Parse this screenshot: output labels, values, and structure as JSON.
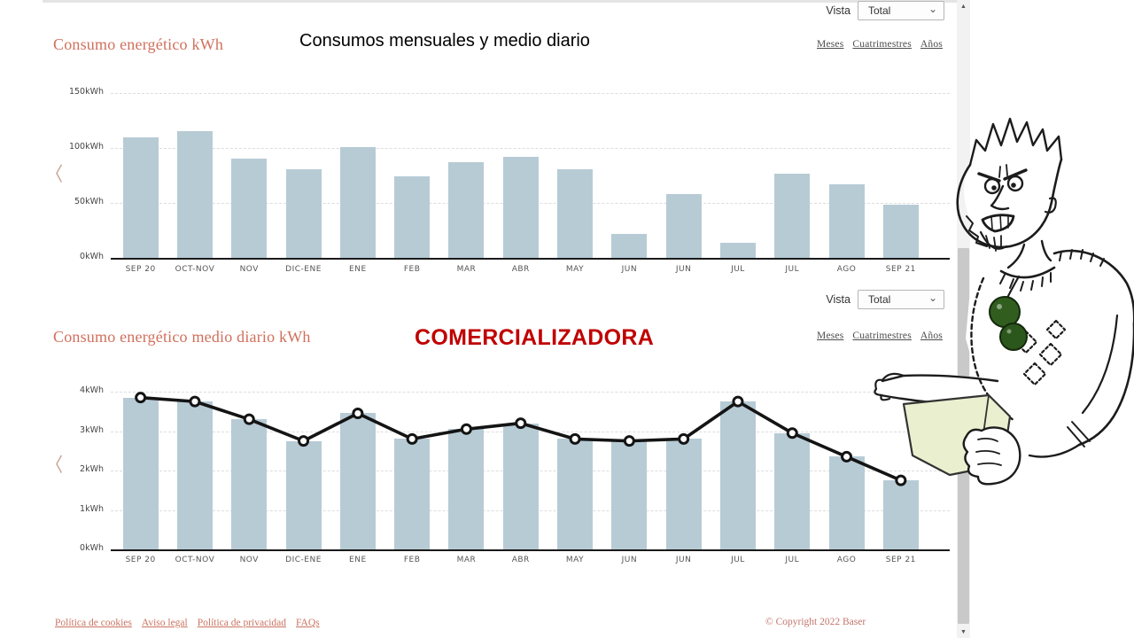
{
  "controls": {
    "vista_label": "Vista",
    "vista_value": "Total",
    "period_links": [
      "Meses",
      "Cuatrimestres",
      "Años"
    ]
  },
  "annotations": {
    "caption_top": "Consumos mensuales y medio diario",
    "caption_middle": "COMERCIALIZADORA"
  },
  "chart_data": [
    {
      "type": "bar",
      "title": "Consumo energético kWh",
      "categories": [
        "SEP 20",
        "OCT-NOV",
        "NOV",
        "DIC-ENE",
        "ENE",
        "FEB",
        "MAR",
        "ABR",
        "MAY",
        "JUN",
        "JUN",
        "JUL",
        "JUL",
        "AGO",
        "SEP 21"
      ],
      "values": [
        110,
        115,
        90,
        81,
        101,
        74,
        87,
        92,
        81,
        22,
        58,
        14,
        77,
        67,
        48
      ],
      "ylim": [
        0,
        150
      ],
      "ytick_values": [
        0,
        50,
        100,
        150
      ],
      "ytick_labels": [
        "0kWh",
        "50kWh",
        "100kWh",
        "150kWh"
      ],
      "unit": "kWh",
      "bar_color": "#b7cbd5",
      "grid": true,
      "legend": false
    },
    {
      "type": "bar+line",
      "title": "Consumo energético medio diario kWh",
      "categories": [
        "SEP 20",
        "OCT-NOV",
        "NOV",
        "DIC-ENE",
        "ENE",
        "FEB",
        "MAR",
        "ABR",
        "MAY",
        "JUN",
        "JUN",
        "JUL",
        "JUL",
        "AGO",
        "SEP 21"
      ],
      "values": [
        3.85,
        3.75,
        3.3,
        2.75,
        3.45,
        2.8,
        3.05,
        3.2,
        2.8,
        2.75,
        2.8,
        3.75,
        2.95,
        2.35,
        1.75
      ],
      "ylim": [
        0,
        4
      ],
      "ytick_values": [
        0,
        1,
        2,
        3,
        4
      ],
      "ytick_labels": [
        "0kWh",
        "1kWh",
        "2kWh",
        "3kWh",
        "4kWh"
      ],
      "unit": "kWh",
      "bar_color": "#b7cbd5",
      "line_color": "#141414",
      "marker": "open-circle",
      "grid": true,
      "legend": false
    }
  ],
  "footer": {
    "links": [
      "Política de cookies",
      "Aviso legal",
      "Política de privacidad",
      "FAQs"
    ],
    "copyright": "© Copyright 2022 Baser"
  },
  "icons": {
    "select_caret": "⌄",
    "chevron_left": "〈",
    "scroll_up": "▲",
    "scroll_down": "▼"
  },
  "colors": {
    "accent_title": "#d0705c",
    "caption_red": "#c00000",
    "bar_fill": "#b7cbd5",
    "line_black": "#141414"
  },
  "cartoon_alt": "hand-drawn angry man with green sunglasses on chest holding a paper"
}
